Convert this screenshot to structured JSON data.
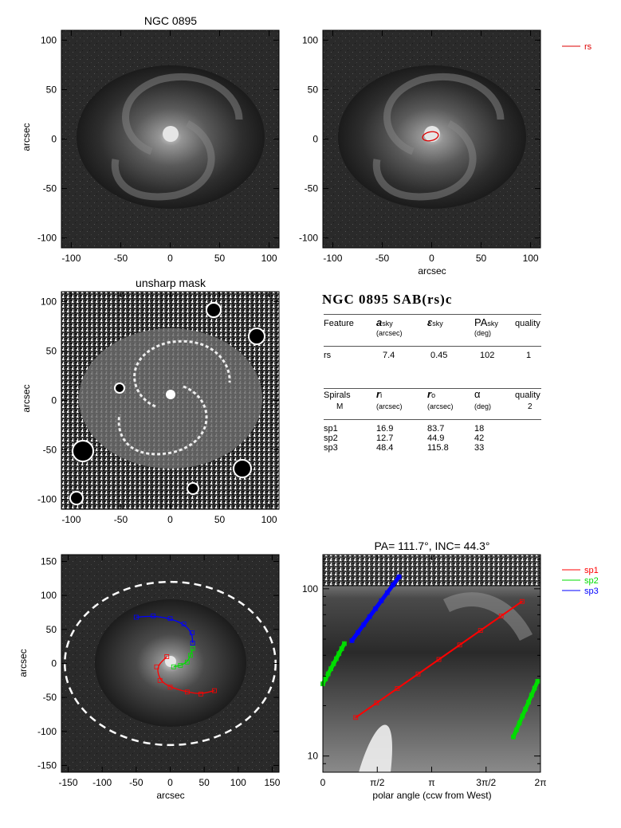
{
  "panels": {
    "top_left_title": "NGC 0895",
    "mid_left_title": "unsharp mask",
    "bottom_right_title": "PA= 111.7°, INC=  44.3°",
    "y_label": "arcsec",
    "x_label": "arcsec",
    "polar_x_label": "polar angle (ccw from West)"
  },
  "image_axes": {
    "ticks_100": [
      "-100",
      "-50",
      "0",
      "50",
      "100"
    ],
    "ticks_150": [
      "-150",
      "-100",
      "-50",
      "0",
      "50",
      "100",
      "150"
    ],
    "polar_x_ticks": [
      "0",
      "π/2",
      "π",
      "3π/2",
      "2π"
    ],
    "polar_y_ticks": [
      "100",
      "10"
    ]
  },
  "legends": {
    "top": [
      {
        "name": "rs",
        "color": "#dd0000"
      }
    ],
    "bottom": [
      {
        "name": "sp1",
        "color": "#ff0000"
      },
      {
        "name": "sp2",
        "color": "#00dd00"
      },
      {
        "name": "sp3",
        "color": "#0000ff"
      }
    ]
  },
  "table": {
    "title": "NGC 0895  SAB(rs)c",
    "features_header": {
      "feature": "Feature",
      "a": "a",
      "a_sub": "sky",
      "a_unit": "(arcsec)",
      "e": "ε",
      "e_sub": "sky",
      "pa": "PA",
      "pa_sub": "sky",
      "pa_unit": "(deg)",
      "quality": "quality"
    },
    "features": [
      {
        "name": "rs",
        "a": "7.4",
        "e": "0.45",
        "pa": "102",
        "quality": "1"
      }
    ],
    "spirals_header": {
      "spirals": "Spirals",
      "sub": "M",
      "ri": "r",
      "ri_sub": "i",
      "ri_unit": "(arcsec)",
      "ro": "r",
      "ro_sub": "o",
      "ro_unit": "(arcsec)",
      "alpha": "α",
      "alpha_unit": "(deg)",
      "quality": "quality",
      "quality_value": "2"
    },
    "spirals": [
      {
        "name": "sp1",
        "ri": "16.9",
        "ro": "83.7",
        "alpha": "18"
      },
      {
        "name": "sp2",
        "ri": "12.7",
        "ro": "44.9",
        "alpha": "42"
      },
      {
        "name": "sp3",
        "ri": "48.4",
        "ro": "115.8",
        "alpha": "33"
      }
    ]
  },
  "chart_data": [
    {
      "type": "scatter",
      "title": "",
      "xlabel": "",
      "ylabel": "arcsec",
      "xlim": [
        -110,
        110
      ],
      "ylim": [
        -110,
        110
      ],
      "series": []
    },
    {
      "type": "scatter",
      "title": "",
      "xlabel": "arcsec",
      "ylabel": "",
      "xlim": [
        -110,
        110
      ],
      "ylim": [
        -110,
        110
      ],
      "ellipse": {
        "name": "rs",
        "center": [
          -2,
          2
        ],
        "a": 7.4,
        "ellipticity": 0.45,
        "pa_deg": 102
      }
    },
    {
      "type": "scatter",
      "title": "",
      "xlabel": "arcsec",
      "ylabel": "arcsec",
      "xlim": [
        -160,
        160
      ],
      "ylim": [
        -160,
        160
      ],
      "disk_ellipse": {
        "center": [
          0,
          0
        ],
        "a": 155,
        "b": 120
      },
      "series": [
        {
          "name": "sp1",
          "points": [
            [
              -5,
              10
            ],
            [
              -20,
              -5
            ],
            [
              -15,
              -25
            ],
            [
              0,
              -35
            ],
            [
              25,
              -42
            ],
            [
              45,
              -45
            ],
            [
              65,
              -40
            ]
          ]
        },
        {
          "name": "sp2",
          "points": [
            [
              5,
              -5
            ],
            [
              15,
              -3
            ],
            [
              25,
              2
            ],
            [
              30,
              12
            ],
            [
              33,
              22
            ]
          ]
        },
        {
          "name": "sp3",
          "points": [
            [
              -50,
              68
            ],
            [
              -25,
              70
            ],
            [
              0,
              66
            ],
            [
              20,
              58
            ],
            [
              32,
              45
            ],
            [
              33,
              30
            ]
          ]
        }
      ]
    },
    {
      "type": "line",
      "title": "PA= 111.7°, INC=  44.3°",
      "xlabel": "polar angle (ccw from West)",
      "ylabel": "",
      "xlim": [
        0,
        6.283
      ],
      "ylim": [
        8,
        160
      ],
      "yscale": "log",
      "series": [
        {
          "name": "sp1",
          "x": [
            0.95,
            5.75
          ],
          "y": [
            17,
            84
          ]
        },
        {
          "name": "sp2",
          "x": [
            0.0,
            0.62
          ],
          "y": [
            27,
            47
          ]
        },
        {
          "name": "sp2",
          "x": [
            5.5,
            6.2
          ],
          "y": [
            13,
            28
          ]
        },
        {
          "name": "sp3",
          "x": [
            0.84,
            2.2
          ],
          "y": [
            49,
            118
          ]
        }
      ]
    }
  ]
}
